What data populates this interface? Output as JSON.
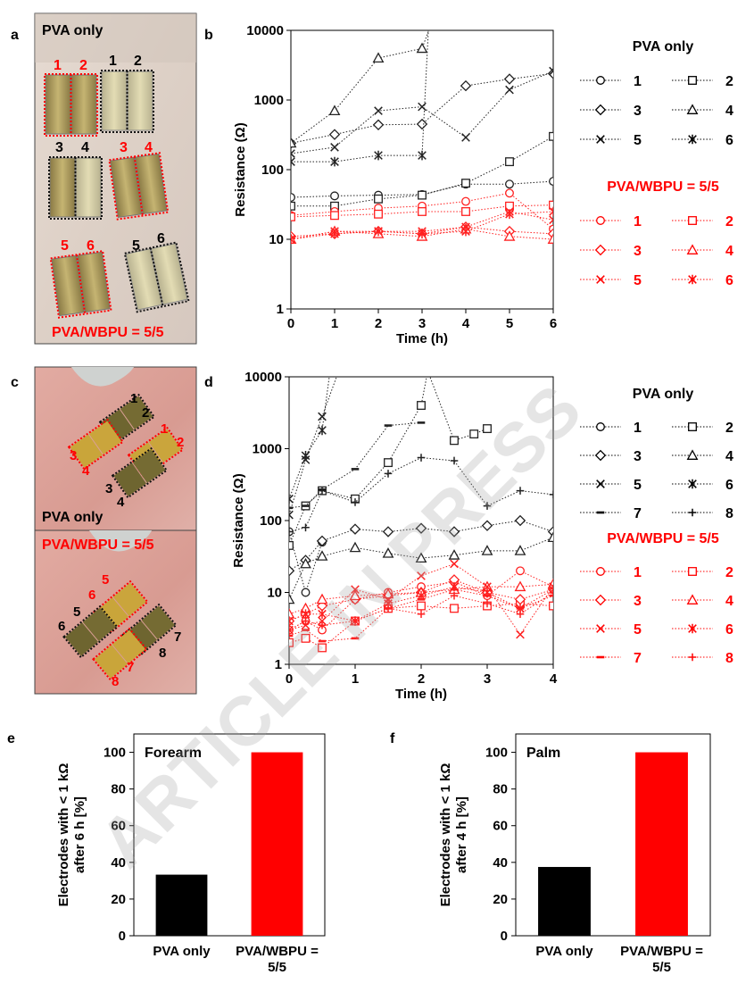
{
  "panels": {
    "a": "a",
    "b": "b",
    "c": "c",
    "d": "d",
    "e": "e",
    "f": "f"
  },
  "photos": {
    "a": {
      "top_label": "PVA only",
      "bottom_label": "PVA/WBPU = 5/5",
      "red_numbers": [
        "1",
        "2",
        "3",
        "4",
        "5",
        "6"
      ],
      "black_numbers": [
        "1",
        "2",
        "3",
        "4",
        "5",
        "6"
      ]
    },
    "c_top": {
      "label": "PVA only",
      "black_numbers": [
        "1",
        "2",
        "3",
        "4"
      ],
      "red_numbers": [
        "1",
        "2",
        "3",
        "4"
      ]
    },
    "c_bottom": {
      "label": "PVA/WBPU = 5/5",
      "red_numbers": [
        "5",
        "6",
        "7",
        "8"
      ],
      "black_numbers": [
        "5",
        "6",
        "7",
        "8"
      ]
    }
  },
  "colors": {
    "black": "#000000",
    "red": "#ff0000",
    "series_black": "#222222",
    "series_red": "#ff2020"
  },
  "watermark": "ARTICLE IN PRESS",
  "chart_data": [
    {
      "id": "b",
      "type": "line",
      "xlabel": "Time (h)",
      "ylabel": "Resistance (Ω)",
      "yscale": "log",
      "ylim": [
        1,
        10000
      ],
      "xlim": [
        0,
        6
      ],
      "xticks": [
        "0",
        "1",
        "2",
        "3",
        "4",
        "5",
        "6"
      ],
      "yticks": [
        "1",
        "10",
        "100",
        "1000",
        "10000"
      ],
      "legend": {
        "group1_title": "PVA only",
        "group2_title": "PVA/WBPU = 5/5",
        "entries": [
          "1",
          "2",
          "3",
          "4",
          "5",
          "6"
        ]
      },
      "series": [
        {
          "group": "PVA only",
          "name": "1",
          "marker": "circle",
          "x": [
            0,
            1,
            2,
            3,
            4,
            5,
            6
          ],
          "y": [
            40,
            42,
            43,
            44,
            62,
            62,
            68
          ]
        },
        {
          "group": "PVA only",
          "name": "2",
          "marker": "square",
          "x": [
            0,
            1,
            2,
            3,
            4,
            5,
            6
          ],
          "y": [
            30,
            30,
            38,
            43,
            64,
            130,
            300
          ]
        },
        {
          "group": "PVA only",
          "name": "3",
          "marker": "diamond",
          "x": [
            0,
            1,
            2,
            3,
            4,
            5,
            6
          ],
          "y": [
            240,
            320,
            440,
            450,
            1600,
            2000,
            2400
          ]
        },
        {
          "group": "PVA only",
          "name": "4",
          "marker": "triangle",
          "x": [
            0,
            1,
            2,
            3,
            3.2
          ],
          "y": [
            240,
            700,
            4000,
            5500,
            12000
          ]
        },
        {
          "group": "PVA only",
          "name": "5",
          "marker": "x",
          "x": [
            0,
            1,
            2,
            3,
            4,
            5,
            6
          ],
          "y": [
            170,
            210,
            700,
            800,
            290,
            1400,
            2600
          ]
        },
        {
          "group": "PVA only",
          "name": "6",
          "marker": "star",
          "x": [
            0,
            1,
            2,
            3,
            3.15
          ],
          "y": [
            130,
            130,
            160,
            160,
            12000
          ]
        },
        {
          "group": "PVA/WBPU = 5/5",
          "name": "1",
          "marker": "circle",
          "x": [
            0,
            1,
            2,
            3,
            4,
            5,
            6
          ],
          "y": [
            22,
            25,
            28,
            30,
            35,
            46,
            14
          ]
        },
        {
          "group": "PVA/WBPU = 5/5",
          "name": "2",
          "marker": "square",
          "x": [
            0,
            1,
            2,
            3,
            4,
            5,
            6
          ],
          "y": [
            21,
            22,
            23,
            25,
            25,
            30,
            31
          ]
        },
        {
          "group": "PVA/WBPU = 5/5",
          "name": "3",
          "marker": "diamond",
          "x": [
            0,
            1,
            2,
            3,
            4,
            5,
            6
          ],
          "y": [
            11,
            12,
            13,
            12,
            15,
            13,
            12
          ]
        },
        {
          "group": "PVA/WBPU = 5/5",
          "name": "4",
          "marker": "triangle",
          "x": [
            0,
            1,
            2,
            3,
            4,
            5,
            6
          ],
          "y": [
            10,
            13,
            12,
            11,
            14,
            11,
            10
          ]
        },
        {
          "group": "PVA/WBPU = 5/5",
          "name": "5",
          "marker": "x",
          "x": [
            0,
            1,
            2,
            3,
            4,
            5,
            6
          ],
          "y": [
            10,
            13,
            13,
            13,
            15,
            25,
            19
          ]
        },
        {
          "group": "PVA/WBPU = 5/5",
          "name": "6",
          "marker": "star",
          "x": [
            0,
            1,
            2,
            3,
            4,
            5,
            6
          ],
          "y": [
            10,
            12,
            13,
            12,
            13,
            23,
            25
          ]
        }
      ]
    },
    {
      "id": "d",
      "type": "line",
      "xlabel": "Time (h)",
      "ylabel": "Resistance (Ω)",
      "yscale": "log",
      "ylim": [
        1,
        10000
      ],
      "xlim": [
        0,
        4
      ],
      "xticks": [
        "0",
        "1",
        "2",
        "3",
        "4"
      ],
      "yticks": [
        "1",
        "10",
        "100",
        "1000",
        "10000"
      ],
      "legend": {
        "group1_title": "PVA only",
        "group2_title": "PVA/WBPU = 5/5",
        "entries": [
          "1",
          "2",
          "3",
          "4",
          "5",
          "6",
          "7",
          "8"
        ]
      },
      "series": [
        {
          "group": "PVA only",
          "name": "1",
          "marker": "circle",
          "x": [
            0,
            0.25,
            0.5
          ],
          "y": [
            70,
            10,
            50
          ]
        },
        {
          "group": "PVA only",
          "name": "2",
          "marker": "square",
          "x": [
            0,
            0.25,
            0.5,
            1,
            1.5,
            2,
            2.1,
            2.5,
            2.8,
            3
          ],
          "y": [
            45,
            160,
            260,
            200,
            640,
            4000,
            12000,
            1300,
            1600,
            1900
          ]
        },
        {
          "group": "PVA only",
          "name": "3",
          "marker": "diamond",
          "x": [
            0,
            0.25,
            0.5,
            1,
            1.5,
            2,
            2.5,
            3,
            3.5,
            4
          ],
          "y": [
            20,
            28,
            52,
            76,
            70,
            78,
            70,
            85,
            100,
            70
          ]
        },
        {
          "group": "PVA only",
          "name": "4",
          "marker": "triangle",
          "x": [
            0,
            0.25,
            0.5,
            1,
            1.5,
            2,
            2.5,
            3,
            3.5,
            4
          ],
          "y": [
            8,
            25,
            32,
            42,
            35,
            30,
            33,
            38,
            38,
            58
          ]
        },
        {
          "group": "PVA only",
          "name": "5",
          "marker": "x",
          "x": [
            0,
            0.25,
            0.5,
            0.75
          ],
          "y": [
            120,
            700,
            2800,
            12000
          ]
        },
        {
          "group": "PVA only",
          "name": "6",
          "marker": "star",
          "x": [
            0,
            0.25,
            0.5,
            0.62
          ],
          "y": [
            200,
            800,
            1800,
            12000
          ]
        },
        {
          "group": "PVA only",
          "name": "7",
          "marker": "dash",
          "x": [
            0,
            0.25,
            0.5,
            1,
            1.5,
            2
          ],
          "y": [
            150,
            160,
            270,
            520,
            2100,
            2300
          ]
        },
        {
          "group": "PVA only",
          "name": "8",
          "marker": "plus",
          "x": [
            0,
            0.25,
            0.5,
            1,
            1.5,
            2,
            2.5,
            3,
            3.5,
            4
          ],
          "y": [
            70,
            80,
            260,
            180,
            450,
            750,
            680,
            160,
            260,
            230
          ]
        },
        {
          "group": "PVA/WBPU = 5/5",
          "name": "1",
          "marker": "circle",
          "x": [
            0,
            0.25,
            0.5,
            1,
            1.5,
            2,
            2.5,
            3,
            3.5,
            4
          ],
          "y": [
            3,
            4,
            3,
            8,
            10,
            12,
            14,
            9,
            20,
            12
          ]
        },
        {
          "group": "PVA/WBPU = 5/5",
          "name": "2",
          "marker": "square",
          "x": [
            0,
            0.25,
            0.5,
            1,
            1.5,
            2,
            2.5,
            3,
            3.5,
            4
          ],
          "y": [
            2,
            2.3,
            1.7,
            4,
            6,
            6.5,
            6,
            6.5,
            7,
            6.5
          ]
        },
        {
          "group": "PVA/WBPU = 5/5",
          "name": "3",
          "marker": "diamond",
          "x": [
            0,
            0.25,
            0.5,
            1,
            1.5,
            2,
            2.5,
            3,
            3.5,
            4
          ],
          "y": [
            4,
            5,
            6.5,
            8,
            9,
            10,
            15,
            10,
            8,
            11
          ]
        },
        {
          "group": "PVA/WBPU = 5/5",
          "name": "4",
          "marker": "triangle",
          "x": [
            0,
            0.25,
            0.5,
            1,
            1.5,
            2,
            2.5,
            3,
            3.5,
            4
          ],
          "y": [
            5,
            6,
            8,
            9,
            9.5,
            10,
            11,
            12,
            12,
            13
          ]
        },
        {
          "group": "PVA/WBPU = 5/5",
          "name": "5",
          "marker": "x",
          "x": [
            0,
            0.25,
            0.5,
            1,
            1.5,
            2,
            2.5,
            3,
            3.5,
            4
          ],
          "y": [
            3,
            3.5,
            4,
            11,
            8,
            17,
            25,
            12,
            2.6,
            12
          ]
        },
        {
          "group": "PVA/WBPU = 5/5",
          "name": "6",
          "marker": "star",
          "x": [
            0,
            0.25,
            0.5,
            1,
            1.5,
            2,
            2.5,
            3,
            3.5,
            4
          ],
          "y": [
            4,
            5,
            5,
            4,
            7,
            9,
            12,
            10,
            6,
            11
          ]
        },
        {
          "group": "PVA/WBPU = 5/5",
          "name": "7",
          "marker": "dash",
          "x": [
            0,
            0.25,
            0.5,
            1,
            1.5,
            2,
            2.5,
            3,
            3.5,
            4
          ],
          "y": [
            2.5,
            3,
            2.1,
            2.3,
            6,
            8,
            11,
            9,
            6,
            9
          ]
        },
        {
          "group": "PVA/WBPU = 5/5",
          "name": "8",
          "marker": "plus",
          "x": [
            0,
            0.25,
            0.5,
            1,
            1.5,
            2,
            2.5,
            3,
            3.5,
            4
          ],
          "y": [
            3,
            4,
            3.5,
            4,
            6,
            5,
            9,
            7,
            5,
            10
          ]
        }
      ]
    },
    {
      "id": "e",
      "type": "bar",
      "title": "Forearm",
      "ylabel": "Electrodes with < 1 kΩ after 6 h [%]",
      "ylabel_lines": [
        "Electrodes with < 1 kΩ",
        "after 6 h [%]"
      ],
      "categories": [
        "PVA only",
        "PVA/WBPU = 5/5"
      ],
      "category_lines": [
        [
          "PVA only"
        ],
        [
          "PVA/WBPU =",
          "5/5"
        ]
      ],
      "values": [
        33.3,
        100
      ],
      "bar_colors": [
        "#000000",
        "#ff0000"
      ],
      "ylim": [
        0,
        110
      ],
      "yticks": [
        "0",
        "20",
        "40",
        "60",
        "80",
        "100"
      ]
    },
    {
      "id": "f",
      "type": "bar",
      "title": "Palm",
      "ylabel": "Electrodes with < 1 kΩ after 4 h [%]",
      "ylabel_lines": [
        "Electrodes with < 1 kΩ",
        "after 4 h [%]"
      ],
      "categories": [
        "PVA only",
        "PVA/WBPU = 5/5"
      ],
      "category_lines": [
        [
          "PVA only"
        ],
        [
          "PVA/WBPU =",
          "5/5"
        ]
      ],
      "values": [
        37.5,
        100
      ],
      "bar_colors": [
        "#000000",
        "#ff0000"
      ],
      "ylim": [
        0,
        110
      ],
      "yticks": [
        "0",
        "20",
        "40",
        "60",
        "80",
        "100"
      ]
    }
  ]
}
